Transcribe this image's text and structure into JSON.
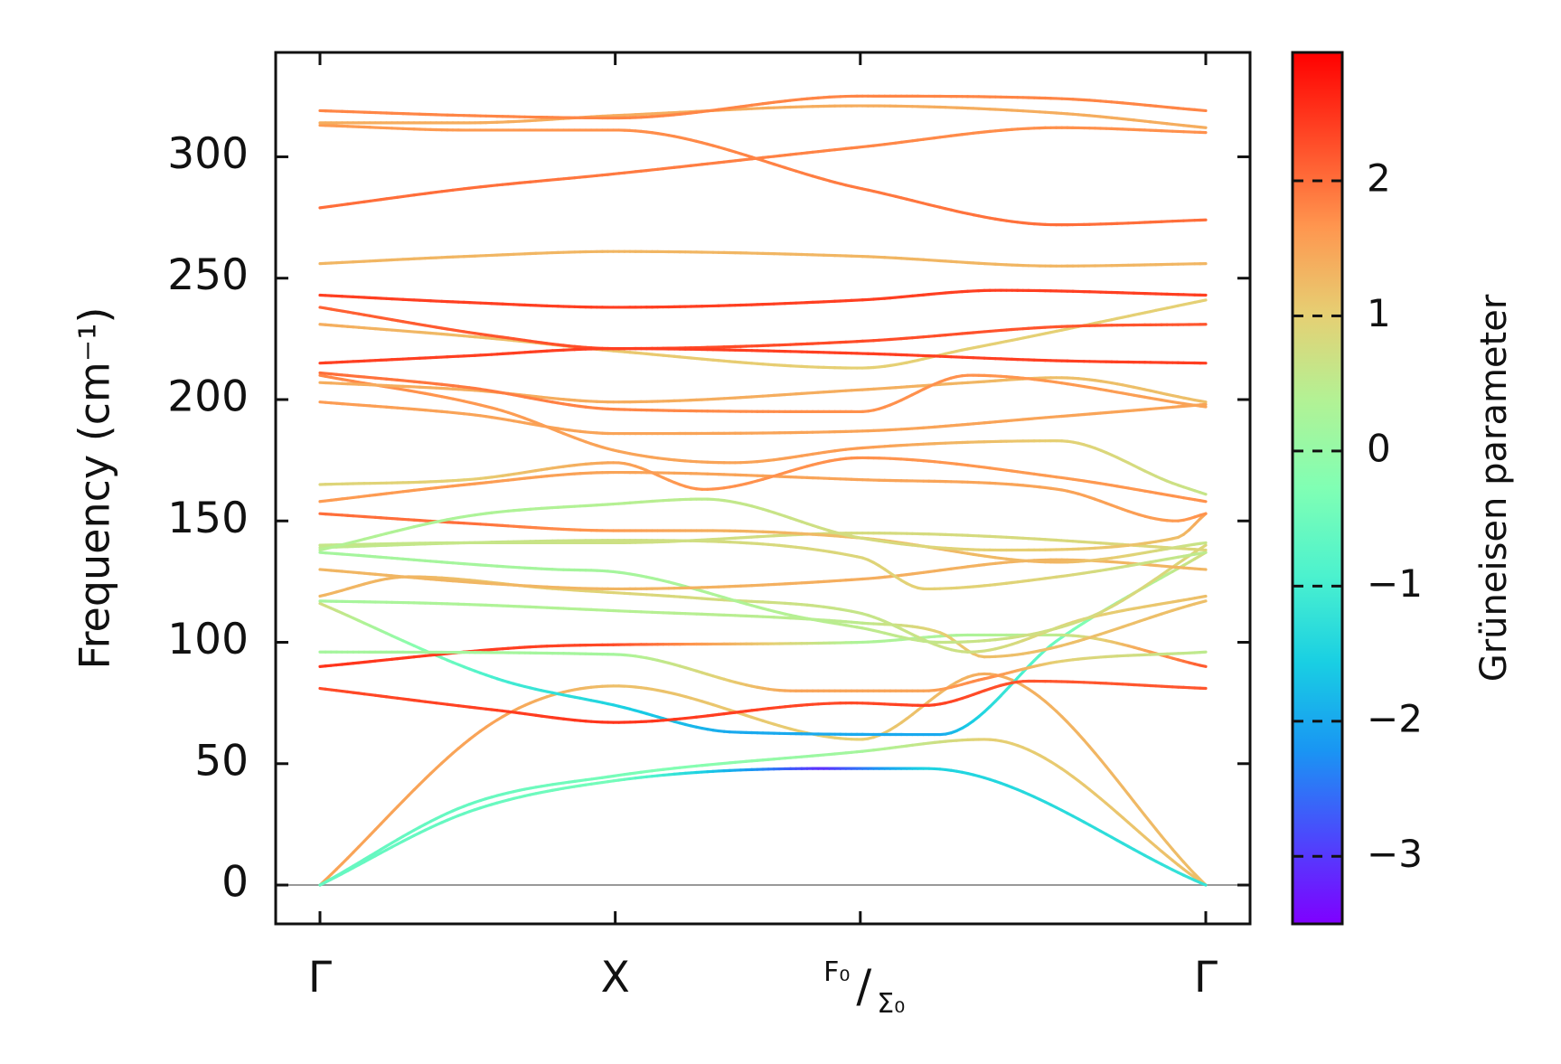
{
  "chart_data": {
    "type": "line",
    "title": "",
    "xlabel": "",
    "ylabel": "Frequency (cm⁻¹)",
    "ylim": [
      -16,
      343
    ],
    "y_ticks": [
      0,
      50,
      100,
      150,
      200,
      250,
      300
    ],
    "x_ticks": [
      {
        "pos": 0.0,
        "label": "Γ"
      },
      {
        "pos": 1.0,
        "label": "X"
      },
      {
        "pos": 1.83,
        "label_top": "F₀",
        "label_bottom": "Σ₀",
        "sep": "/"
      },
      {
        "pos": 3.0,
        "label": "Γ"
      }
    ],
    "xlim": [
      -0.15,
      3.15
    ],
    "zero_line": true,
    "colorbar": {
      "label": "Grüneisen parameter",
      "min": -3.5,
      "max": 2.95,
      "ticks": [
        -3,
        -2,
        -1,
        0,
        1,
        2
      ],
      "tick_labels": [
        "−3",
        "−2",
        "−1",
        "0",
        "1",
        "2"
      ],
      "colormap": [
        "#7f00ff",
        "#4b49fc",
        "#1996f3",
        "#19cfe3",
        "#4cf2ce",
        "#80ffb4",
        "#b2f295",
        "#e6cf73",
        "#ff964f",
        "#ff4a27",
        "#ff0000"
      ]
    },
    "series": [
      {
        "x": [
          0,
          0.6,
          1.0,
          1.83,
          2.25,
          3.0
        ],
        "y": [
          0,
          68,
          82,
          60,
          87,
          0
        ],
        "g": [
          1.5,
          1.5,
          1.2,
          1.0,
          1.4,
          1.2
        ]
      },
      {
        "x": [
          0,
          0.5,
          1.0,
          1.83,
          2.25,
          3.0
        ],
        "y": [
          0,
          33,
          45,
          55,
          60,
          0
        ],
        "g": [
          -0.6,
          -0.6,
          -0.4,
          0.2,
          1.0,
          1.2
        ]
      },
      {
        "x": [
          0,
          0.5,
          1.0,
          1.7,
          2.05,
          3.0
        ],
        "y": [
          0,
          30,
          43,
          48,
          48,
          0
        ],
        "g": [
          -0.6,
          -0.6,
          -0.4,
          -3.1,
          -1.5,
          -1.2
        ]
      },
      {
        "x": [
          0,
          0.6,
          1.0,
          1.4,
          2.1,
          2.5,
          3.0
        ],
        "y": [
          116,
          85,
          74,
          63,
          62,
          101,
          137
        ],
        "g": [
          0.8,
          -1.0,
          -1.5,
          -2.0,
          -2.0,
          -0.5,
          0.8
        ]
      },
      {
        "x": [
          0,
          0.6,
          1.0,
          1.8,
          2.05,
          2.4,
          3.0
        ],
        "y": [
          81,
          72,
          67,
          75,
          74,
          84,
          81
        ],
        "g": [
          2.3,
          2.4,
          2.5,
          2.3,
          2.4,
          2.2,
          2.2
        ]
      },
      {
        "x": [
          0,
          0.7,
          1.0,
          1.83,
          2.2,
          2.5,
          3.0
        ],
        "y": [
          90,
          98,
          99,
          100,
          103,
          103,
          90
        ],
        "g": [
          2.5,
          2.4,
          2.3,
          0.3,
          0.3,
          0.5,
          2.2
        ]
      },
      {
        "x": [
          0,
          1.0,
          1.6,
          2.05,
          2.25,
          2.5,
          3.0
        ],
        "y": [
          96,
          95,
          80,
          80,
          85,
          92,
          96
        ],
        "g": [
          0.2,
          0.2,
          1.5,
          1.5,
          1.8,
          1.0,
          0.5
        ]
      },
      {
        "x": [
          0,
          0.4,
          1.0,
          1.83,
          2.1,
          2.25,
          3.0
        ],
        "y": [
          117,
          116,
          113,
          108,
          104,
          94,
          117
        ],
        "g": [
          0.2,
          0.3,
          0.4,
          0.5,
          1.0,
          1.2,
          1.2
        ]
      },
      {
        "x": [
          0,
          0.3,
          0.8,
          1.3,
          1.83,
          2.2,
          2.6,
          3.0
        ],
        "y": [
          119,
          127,
          122,
          118,
          112,
          96,
          110,
          119
        ],
        "g": [
          1.3,
          1.3,
          1.0,
          0.8,
          0.6,
          0.7,
          1.0,
          1.2
        ]
      },
      {
        "x": [
          0,
          0.8,
          1.0,
          1.6,
          1.83,
          2.1,
          2.6,
          3.0
        ],
        "y": [
          137,
          130,
          129,
          111,
          106,
          100,
          110,
          140
        ],
        "g": [
          0.2,
          0.2,
          0.2,
          0.4,
          0.5,
          0.6,
          0.8,
          0.9
        ]
      },
      {
        "x": [
          0,
          0.6,
          1.0,
          1.83,
          2.5,
          3.0
        ],
        "y": [
          130,
          124,
          122,
          126,
          134,
          130
        ],
        "g": [
          1.3,
          1.3,
          1.3,
          1.4,
          1.3,
          1.3
        ]
      },
      {
        "x": [
          0,
          0.5,
          1.0,
          1.83,
          2.05,
          2.5,
          3.0
        ],
        "y": [
          139,
          141,
          142,
          135,
          122,
          127,
          137
        ],
        "g": [
          0.5,
          0.6,
          0.7,
          0.9,
          1.0,
          0.9,
          0.5
        ]
      },
      {
        "x": [
          0,
          0.5,
          1.0,
          1.83,
          2.2,
          3.0
        ],
        "y": [
          140,
          141,
          141,
          145,
          144,
          138
        ],
        "g": [
          0.6,
          0.6,
          0.7,
          0.8,
          0.8,
          0.9
        ]
      },
      {
        "x": [
          0,
          0.5,
          1.0,
          1.3,
          1.83,
          2.5,
          3.0
        ],
        "y": [
          153,
          149,
          146,
          146,
          143,
          133,
          141
        ],
        "g": [
          2.0,
          2.0,
          1.6,
          1.4,
          1.2,
          1.3,
          0.6
        ]
      },
      {
        "x": [
          0,
          0.5,
          1.0,
          1.3,
          1.83,
          2.3,
          2.9,
          3.0
        ],
        "y": [
          138,
          152,
          157,
          159,
          143,
          138,
          143,
          153
        ],
        "g": [
          0.4,
          0.3,
          0.4,
          0.5,
          0.8,
          1.0,
          1.2,
          1.5
        ]
      },
      {
        "x": [
          0,
          0.5,
          1.0,
          1.83,
          2.5,
          2.9,
          3.0
        ],
        "y": [
          158,
          165,
          170,
          167,
          163,
          150,
          153
        ],
        "g": [
          1.6,
          1.6,
          1.5,
          1.5,
          1.5,
          1.6,
          1.7
        ]
      },
      {
        "x": [
          0,
          0.5,
          1.0,
          1.3,
          1.83,
          2.5,
          3.0
        ],
        "y": [
          165,
          167,
          174,
          163,
          176,
          168,
          158
        ],
        "g": [
          0.9,
          1.0,
          1.5,
          1.7,
          1.7,
          1.6,
          1.7
        ]
      },
      {
        "x": [
          0,
          0.5,
          1.0,
          1.83,
          2.5,
          3.0
        ],
        "y": [
          199,
          194,
          186,
          187,
          193,
          198
        ],
        "g": [
          1.6,
          1.5,
          1.5,
          1.5,
          1.5,
          1.5
        ]
      },
      {
        "x": [
          0,
          0.6,
          1.0,
          1.4,
          1.83,
          2.5,
          2.9,
          3.0
        ],
        "y": [
          210,
          196,
          179,
          174,
          180,
          183,
          165,
          161
        ],
        "g": [
          1.8,
          1.6,
          1.5,
          1.5,
          1.6,
          1.0,
          0.7,
          0.6
        ]
      },
      {
        "x": [
          0,
          0.5,
          1.0,
          1.83,
          2.2,
          2.5,
          3.0
        ],
        "y": [
          207,
          204,
          199,
          204,
          207,
          209,
          199
        ],
        "g": [
          1.4,
          1.4,
          1.4,
          1.4,
          1.3,
          1.2,
          1.2
        ]
      },
      {
        "x": [
          0,
          0.5,
          1.0,
          1.83,
          2.2,
          3.0
        ],
        "y": [
          211,
          205,
          196,
          195,
          210,
          197
        ],
        "g": [
          2.0,
          1.9,
          1.8,
          1.7,
          1.7,
          1.5
        ]
      },
      {
        "x": [
          0,
          0.6,
          1.0,
          1.83,
          2.2,
          3.0
        ],
        "y": [
          231,
          225,
          220,
          213,
          221,
          241
        ],
        "g": [
          1.4,
          1.2,
          1.1,
          1.0,
          1.0,
          1.0
        ]
      },
      {
        "x": [
          0,
          0.6,
          1.0,
          1.83,
          2.5,
          3.0
        ],
        "y": [
          238,
          226,
          221,
          224,
          230,
          231
        ],
        "g": [
          2.1,
          2.2,
          2.3,
          2.3,
          2.2,
          2.2
        ]
      },
      {
        "x": [
          0,
          0.5,
          1.0,
          1.83,
          2.5,
          3.0
        ],
        "y": [
          215,
          218,
          221,
          219,
          216,
          215
        ],
        "g": [
          2.4,
          2.4,
          2.4,
          2.4,
          2.4,
          2.4
        ]
      },
      {
        "x": [
          0,
          0.5,
          1.0,
          1.83,
          2.3,
          3.0
        ],
        "y": [
          243,
          240,
          238,
          241,
          245,
          243
        ],
        "g": [
          2.4,
          2.4,
          2.4,
          2.4,
          2.4,
          2.4
        ]
      },
      {
        "x": [
          0,
          0.5,
          1.0,
          1.83,
          2.5,
          3.0
        ],
        "y": [
          256,
          259,
          261,
          259,
          255,
          256
        ],
        "g": [
          1.3,
          1.3,
          1.3,
          1.3,
          1.3,
          1.3
        ]
      },
      {
        "x": [
          0,
          0.5,
          1.0,
          1.83,
          2.5,
          3.0
        ],
        "y": [
          279,
          287,
          293,
          304,
          312,
          310
        ],
        "g": [
          2.0,
          2.0,
          1.9,
          1.8,
          1.7,
          1.7
        ]
      },
      {
        "x": [
          0,
          0.5,
          1.0,
          1.83,
          2.5,
          3.0
        ],
        "y": [
          313,
          311,
          311,
          287,
          272,
          274
        ],
        "g": [
          1.6,
          1.6,
          1.7,
          1.9,
          2.0,
          2.0
        ]
      },
      {
        "x": [
          0,
          0.5,
          1.0,
          1.83,
          2.5,
          3.0
        ],
        "y": [
          314,
          314,
          317,
          321,
          318,
          312
        ],
        "g": [
          1.4,
          1.4,
          1.4,
          1.4,
          1.4,
          1.4
        ]
      },
      {
        "x": [
          0,
          0.5,
          1.0,
          1.83,
          2.5,
          3.0
        ],
        "y": [
          319,
          317,
          316,
          325,
          324,
          319
        ],
        "g": [
          1.8,
          1.8,
          1.8,
          1.8,
          1.8,
          1.8
        ]
      }
    ]
  }
}
